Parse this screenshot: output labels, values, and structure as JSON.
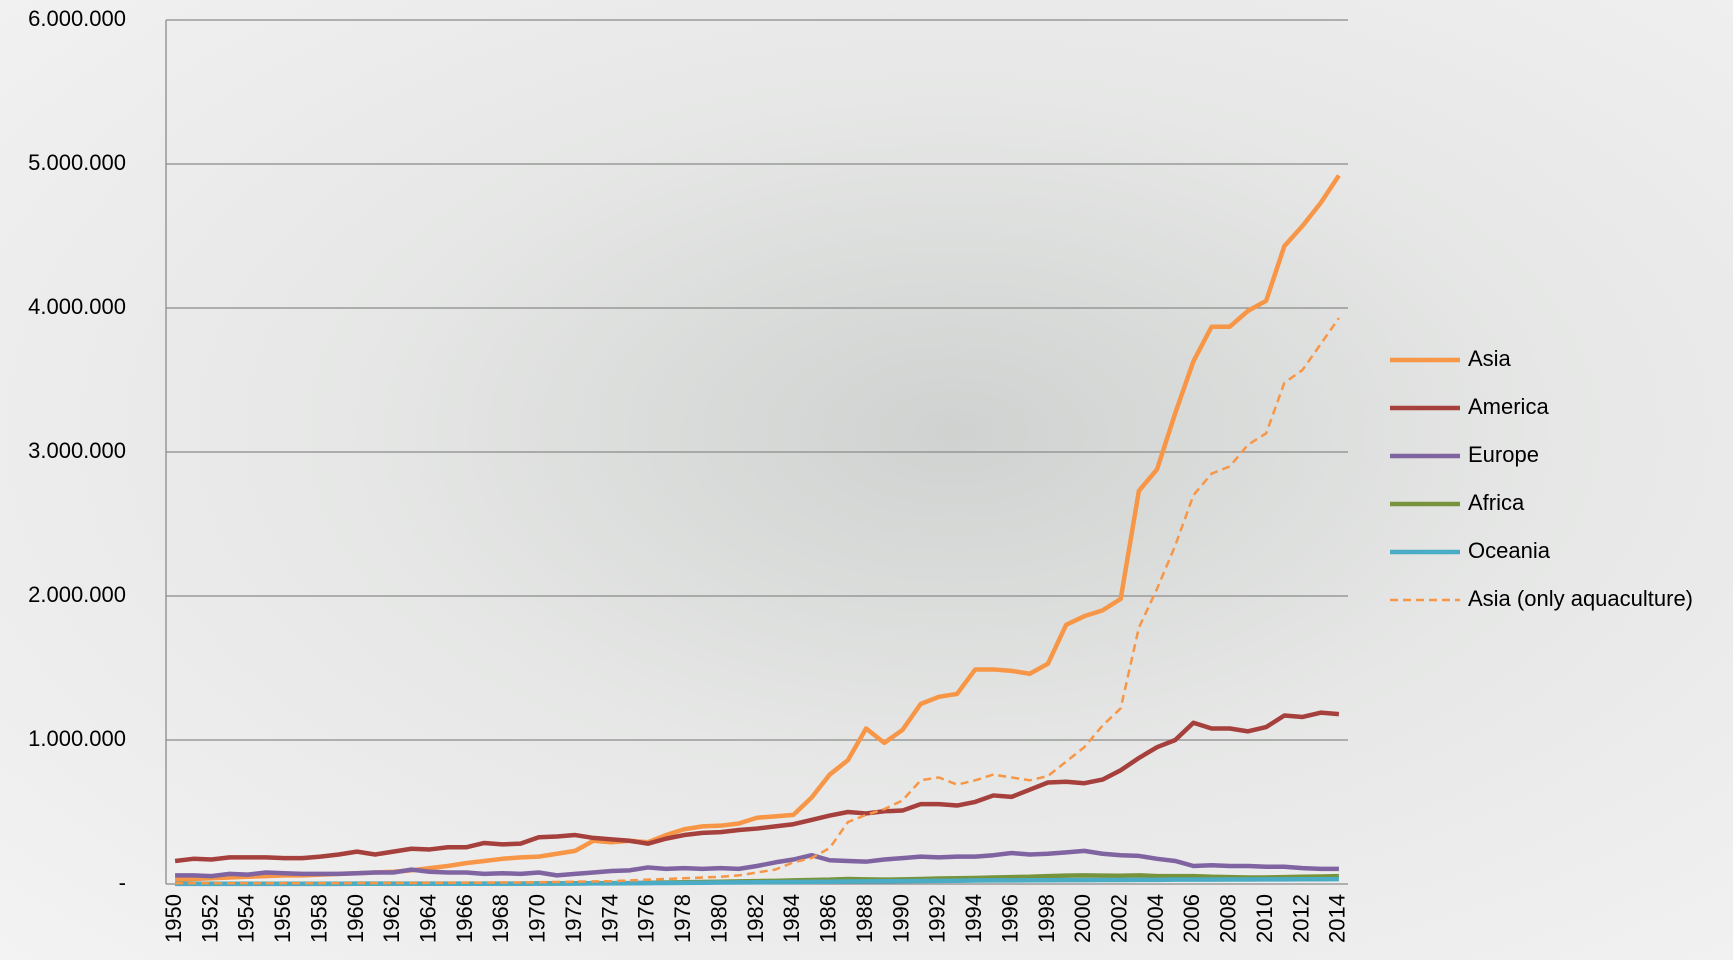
{
  "chart_data": {
    "type": "line",
    "categories": [
      "1950",
      null,
      "1952",
      null,
      "1954",
      null,
      "1956",
      null,
      "1958",
      null,
      "1960",
      null,
      "1962",
      null,
      "1964",
      null,
      "1966",
      null,
      "1968",
      null,
      "1970",
      null,
      "1972",
      null,
      "1974",
      null,
      "1976",
      null,
      "1978",
      null,
      "1980",
      null,
      "1982",
      null,
      "1984",
      null,
      "1986",
      null,
      "1988",
      null,
      "1990",
      null,
      "1992",
      null,
      "1994",
      null,
      "1996",
      null,
      "1998",
      null,
      "2000",
      null,
      "2002",
      null,
      "2004",
      null,
      "2006",
      null,
      "2008",
      null,
      "2010",
      null,
      "2012",
      null,
      "2014"
    ],
    "series": [
      {
        "name": "Asia",
        "color": "#f79646",
        "linestyle": "solid",
        "values": [
          30000,
          35000,
          40000,
          45000,
          50000,
          55000,
          60000,
          60000,
          65000,
          70000,
          75000,
          80000,
          85000,
          95000,
          110000,
          125000,
          145000,
          160000,
          175000,
          185000,
          190000,
          210000,
          230000,
          300000,
          290000,
          300000,
          290000,
          340000,
          380000,
          400000,
          405000,
          420000,
          460000,
          470000,
          480000,
          600000,
          760000,
          860000,
          1080000,
          980000,
          1070000,
          1250000,
          1300000,
          1320000,
          1490000,
          1490000,
          1480000,
          1460000,
          1530000,
          1800000,
          1860000,
          1900000,
          1980000,
          2730000,
          2880000,
          3270000,
          3630000,
          3870000,
          3870000,
          3980000,
          4050000,
          4430000,
          4570000,
          4730000,
          4920000
        ]
      },
      {
        "name": "America",
        "color": "#a5403d",
        "linestyle": "solid",
        "values": [
          160000,
          175000,
          170000,
          185000,
          185000,
          185000,
          180000,
          180000,
          190000,
          205000,
          225000,
          205000,
          225000,
          245000,
          240000,
          255000,
          255000,
          285000,
          275000,
          280000,
          325000,
          330000,
          340000,
          320000,
          310000,
          300000,
          280000,
          315000,
          340000,
          355000,
          360000,
          375000,
          385000,
          400000,
          415000,
          445000,
          475000,
          500000,
          490000,
          505000,
          510000,
          555000,
          555000,
          545000,
          570000,
          615000,
          605000,
          655000,
          705000,
          710000,
          700000,
          725000,
          790000,
          875000,
          950000,
          1000000,
          1120000,
          1080000,
          1080000,
          1060000,
          1090000,
          1170000,
          1160000,
          1190000,
          1180000
        ]
      },
      {
        "name": "Europe",
        "color": "#8064a2",
        "linestyle": "solid",
        "values": [
          60000,
          60000,
          55000,
          70000,
          65000,
          80000,
          75000,
          70000,
          70000,
          70000,
          75000,
          80000,
          80000,
          100000,
          85000,
          80000,
          80000,
          70000,
          75000,
          70000,
          80000,
          60000,
          70000,
          80000,
          90000,
          95000,
          115000,
          105000,
          110000,
          105000,
          110000,
          105000,
          125000,
          150000,
          170000,
          200000,
          165000,
          160000,
          155000,
          170000,
          180000,
          190000,
          185000,
          190000,
          190000,
          200000,
          215000,
          205000,
          210000,
          220000,
          230000,
          210000,
          200000,
          195000,
          175000,
          160000,
          125000,
          130000,
          125000,
          125000,
          120000,
          120000,
          110000,
          105000,
          105000
        ]
      },
      {
        "name": "Africa",
        "color": "#77933c",
        "linestyle": "solid",
        "values": [
          2000,
          2000,
          2000,
          2000,
          2000,
          2000,
          2000,
          2000,
          2000,
          2000,
          3000,
          3000,
          3000,
          3000,
          3000,
          3000,
          3000,
          3000,
          3000,
          3000,
          4000,
          4000,
          5000,
          5000,
          6000,
          6000,
          8000,
          10000,
          12000,
          14000,
          16000,
          18000,
          20000,
          22000,
          25000,
          28000,
          30000,
          35000,
          32000,
          30000,
          32000,
          35000,
          38000,
          40000,
          42000,
          45000,
          48000,
          50000,
          55000,
          58000,
          60000,
          58000,
          57000,
          60000,
          55000,
          55000,
          55000,
          50000,
          48000,
          45000,
          45000,
          48000,
          50000,
          52000,
          55000
        ]
      },
      {
        "name": "Oceania",
        "color": "#4bacc6",
        "linestyle": "solid",
        "values": [
          1000,
          1000,
          1000,
          1000,
          1000,
          1000,
          1000,
          1000,
          1000,
          1000,
          2000,
          2000,
          2000,
          2000,
          2000,
          2000,
          2000,
          2000,
          2000,
          2000,
          3000,
          3000,
          3000,
          4000,
          4000,
          5000,
          6000,
          7000,
          8000,
          9000,
          10000,
          11000,
          12000,
          13000,
          14000,
          15000,
          16000,
          17000,
          18000,
          19000,
          20000,
          21000,
          22000,
          23000,
          24000,
          25000,
          25000,
          26000,
          26000,
          27000,
          27000,
          28000,
          28000,
          29000,
          29000,
          30000,
          30000,
          30000,
          31000,
          31000,
          32000,
          32000,
          33000,
          33000,
          34000
        ]
      },
      {
        "name": "Asia (only aquaculture)",
        "color": "#f79646",
        "linestyle": "dashed",
        "values": [
          5000,
          5000,
          5000,
          5000,
          5000,
          5000,
          5000,
          5000,
          5000,
          5000,
          6000,
          6000,
          7000,
          7000,
          8000,
          8000,
          9000,
          9000,
          10000,
          10000,
          12000,
          14000,
          16000,
          18000,
          20000,
          25000,
          30000,
          35000,
          40000,
          45000,
          50000,
          60000,
          80000,
          100000,
          150000,
          180000,
          250000,
          430000,
          480000,
          520000,
          580000,
          720000,
          740000,
          690000,
          720000,
          760000,
          740000,
          720000,
          750000,
          850000,
          950000,
          1100000,
          1220000,
          1780000,
          2050000,
          2350000,
          2700000,
          2850000,
          2900000,
          3050000,
          3130000,
          3480000,
          3570000,
          3750000,
          3930000
        ]
      }
    ],
    "ylim": [
      0,
      6000000
    ],
    "yticks": [
      {
        "value": 0,
        "label": "-"
      },
      {
        "value": 1000000,
        "label": "1.000.000"
      },
      {
        "value": 2000000,
        "label": "2.000.000"
      },
      {
        "value": 3000000,
        "label": "3.000.000"
      },
      {
        "value": 4000000,
        "label": "4.000.000"
      },
      {
        "value": 5000000,
        "label": "5.000.000"
      },
      {
        "value": 6000000,
        "label": "6.000.000"
      }
    ],
    "grid": true,
    "legend": "right"
  }
}
